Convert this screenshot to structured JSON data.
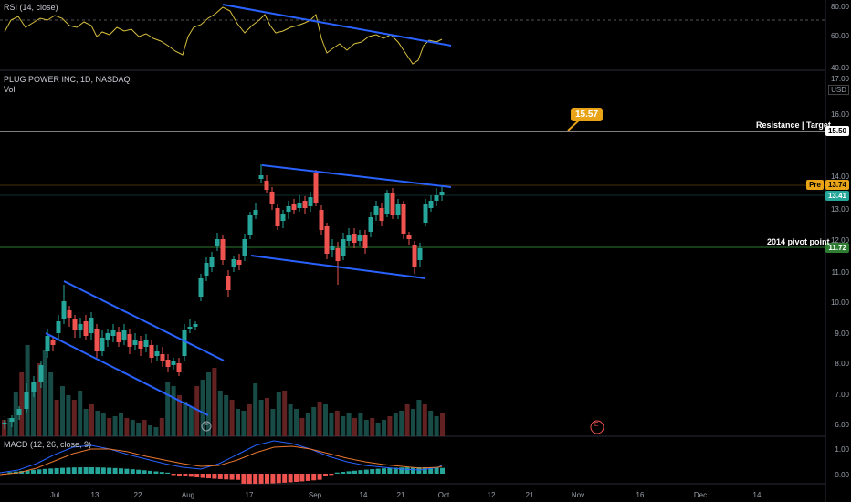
{
  "rsi": {
    "label": "RSI (14, close)",
    "axis": [
      "80.00",
      "60.00",
      "40.00"
    ]
  },
  "main": {
    "title": "PLUG POWER INC, 1D, NASDAQ",
    "vol_label": "Vol",
    "currency": "USD",
    "axis": [
      "17.00",
      "16.00",
      "15.50",
      "14.00",
      "13.00",
      "12.00",
      "11.00",
      "10.00",
      "9.00",
      "8.00",
      "7.00",
      "6.00"
    ],
    "pre_label": "Pre",
    "pre_price": "13.74",
    "last_price": "13.41",
    "pivot_price": "11.72",
    "resistance_price": "15.50",
    "resistance_label": "Resistance | Target",
    "pivot_label": "2014 pivot point",
    "target_callout": "15.57",
    "earnings_marker": "E",
    "earnings_marker_small": "E"
  },
  "macd": {
    "label": "MACD (12, 26, close, 9)",
    "axis": [
      "1.00",
      "0.00"
    ]
  },
  "x_axis": [
    "Jul",
    "13",
    "22",
    "Aug",
    "17",
    "Sep",
    "14",
    "21",
    "Oct",
    "12",
    "21",
    "Nov",
    "16",
    "Dec",
    "14"
  ],
  "colors": {
    "up": "#26a69a",
    "down": "#ef5350",
    "trend": "#2962ff",
    "rsi": "#d8bf3f",
    "pivot": "#2e7d32",
    "resistance": "#ffffff",
    "callout": "#e8a317"
  }
}
